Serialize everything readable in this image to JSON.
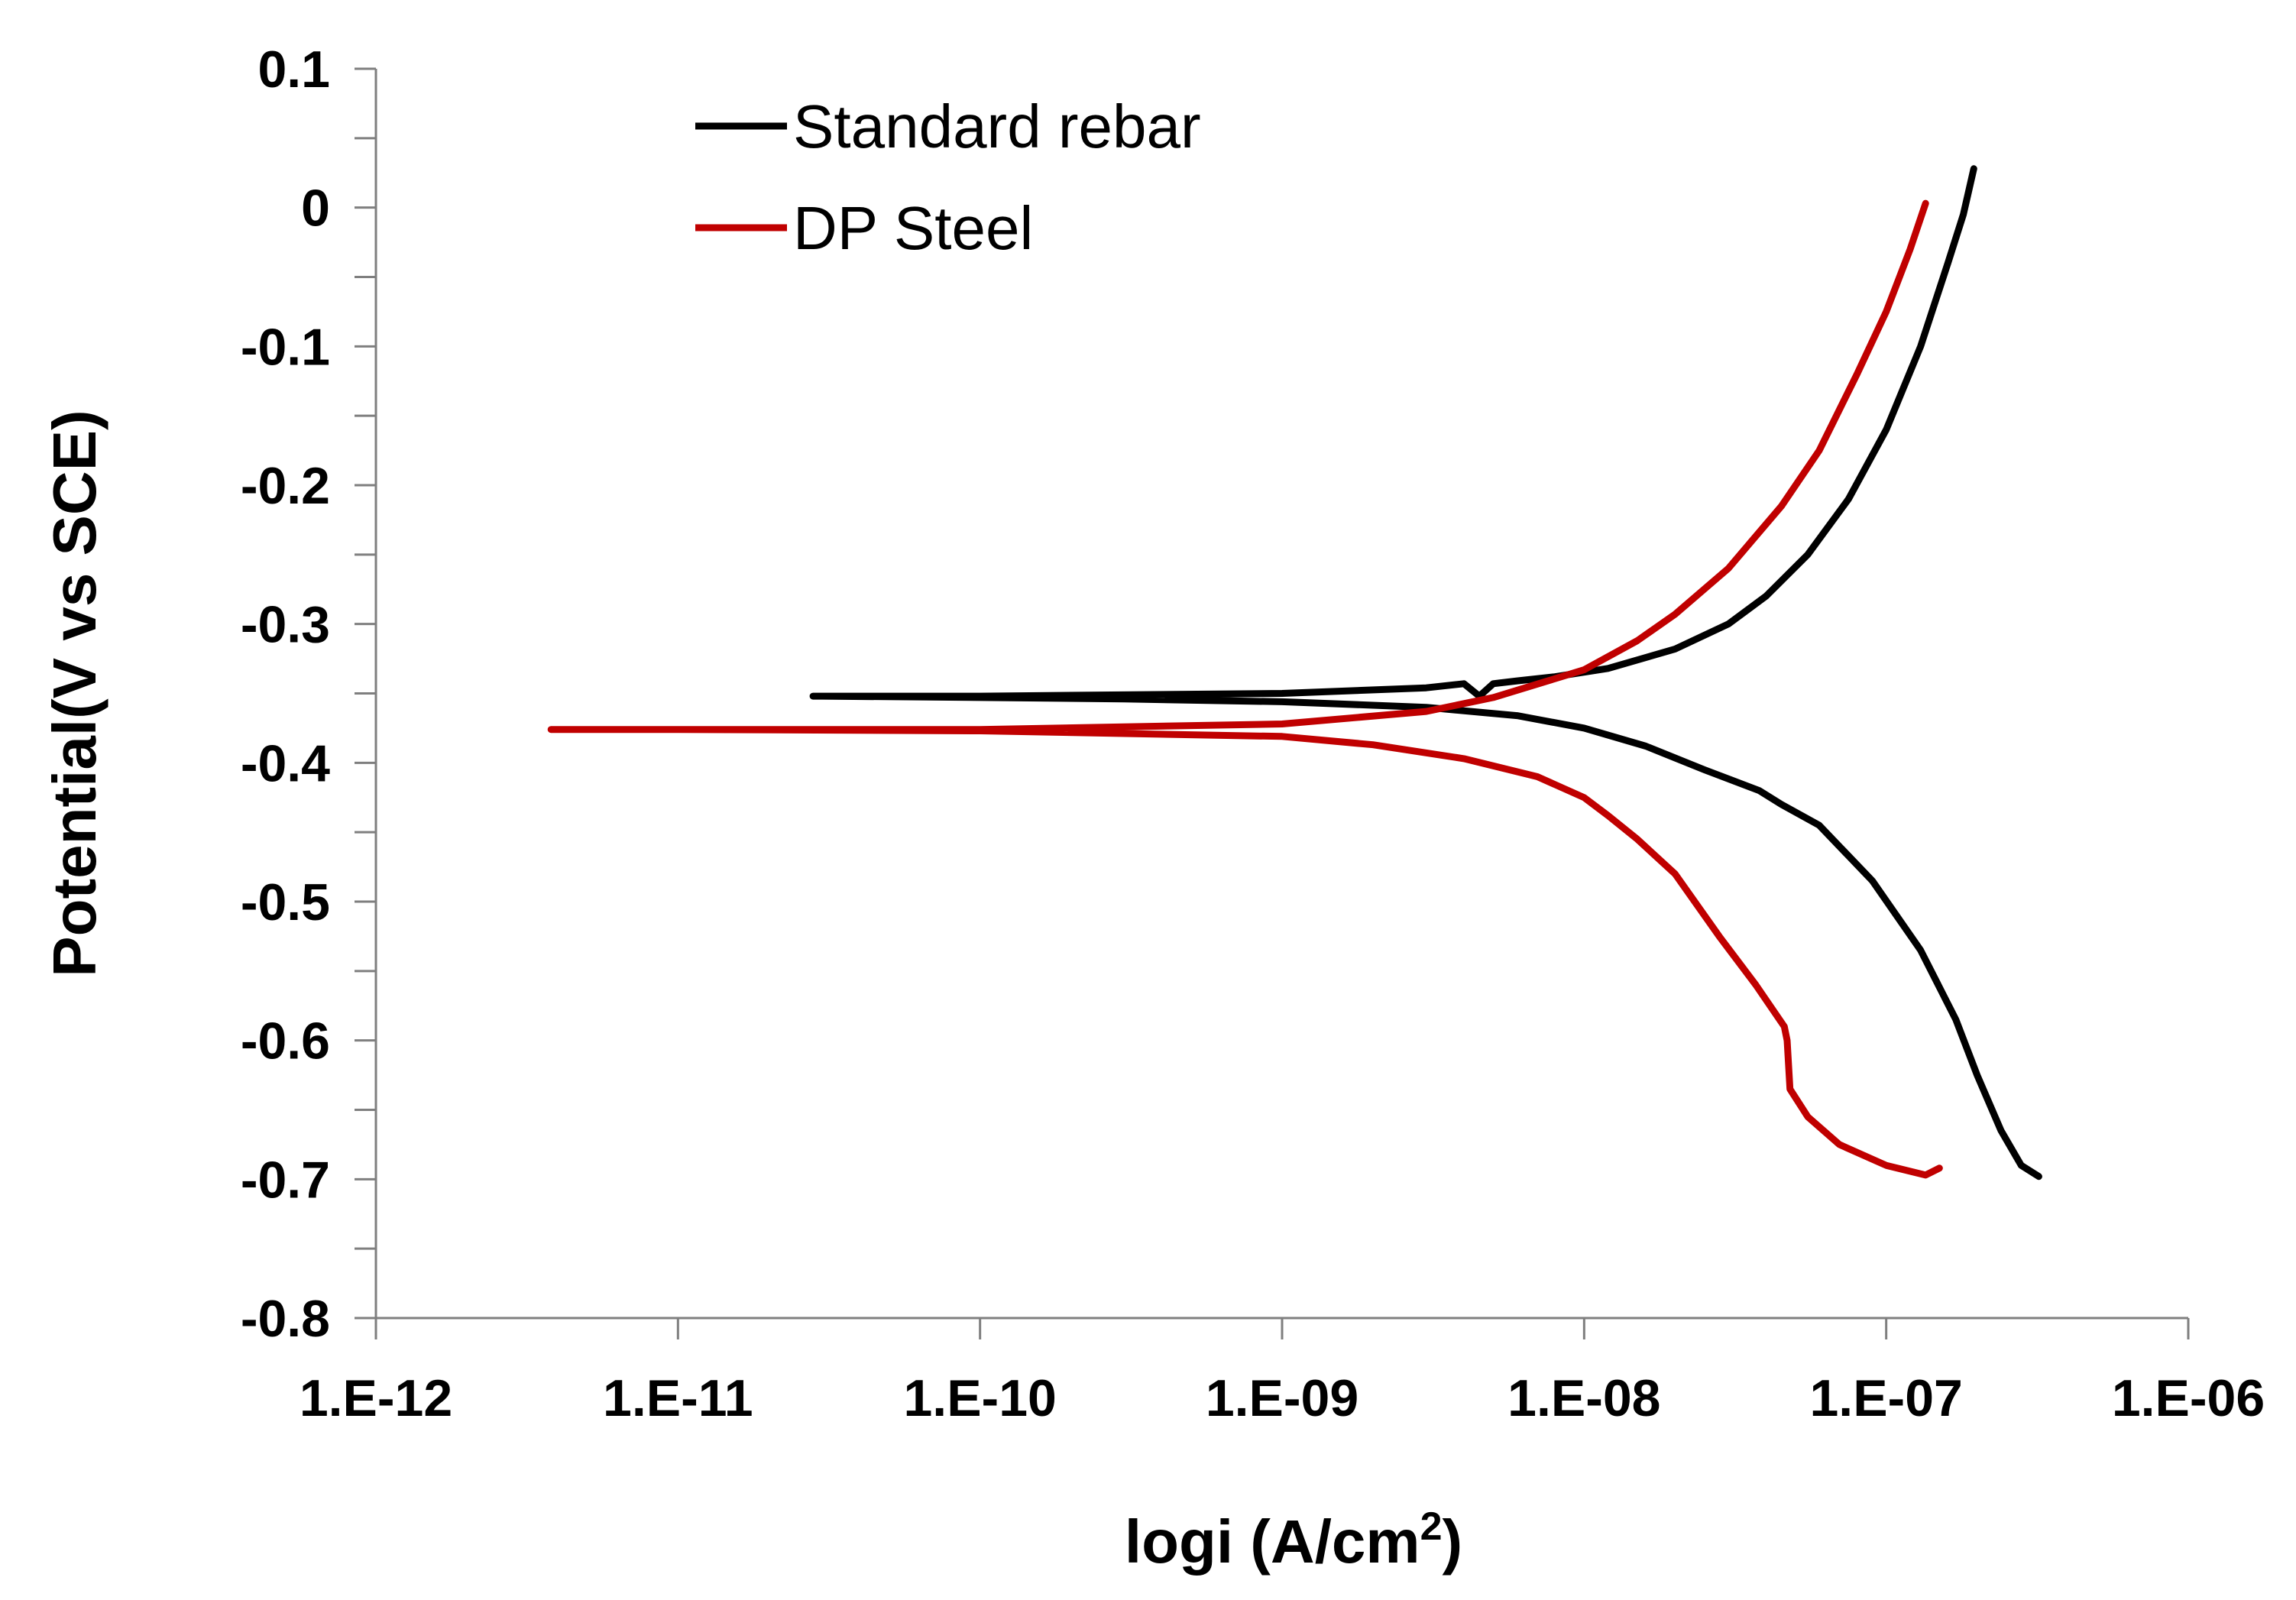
{
  "chart_data": {
    "type": "line",
    "xscale": "log",
    "xlim": [
      1e-12,
      1e-06
    ],
    "ylim": [
      -0.8,
      0.1
    ],
    "grid": false,
    "legend_position": "top-left",
    "xlabel": "logi (A/cm",
    "xlabel_sup": "2",
    "xlabel_close": ")",
    "ylabel": "Potential(V vs SCE)",
    "x_ticks": [
      {
        "value": 1e-12,
        "label": "1.E-12"
      },
      {
        "value": 1e-11,
        "label": "1.E-11"
      },
      {
        "value": 1e-10,
        "label": "1.E-10"
      },
      {
        "value": 1e-09,
        "label": "1.E-09"
      },
      {
        "value": 1e-08,
        "label": "1.E-08"
      },
      {
        "value": 1e-07,
        "label": "1.E-07"
      },
      {
        "value": 1e-06,
        "label": "1.E-06"
      }
    ],
    "y_ticks": [
      {
        "value": 0.1,
        "label": "0.1"
      },
      {
        "value": 0,
        "label": "0"
      },
      {
        "value": -0.1,
        "label": "-0.1"
      },
      {
        "value": -0.2,
        "label": "-0.2"
      },
      {
        "value": -0.3,
        "label": "-0.3"
      },
      {
        "value": -0.4,
        "label": "-0.4"
      },
      {
        "value": -0.5,
        "label": "-0.5"
      },
      {
        "value": -0.6,
        "label": "-0.6"
      },
      {
        "value": -0.7,
        "label": "-0.7"
      },
      {
        "value": -0.8,
        "label": "-0.8"
      }
    ],
    "y_minor_step": 0.05,
    "series": [
      {
        "name": "Standard rebar",
        "color": "#000000",
        "points": [
          [
            3.2e-07,
            -0.698
          ],
          [
            2.8e-07,
            -0.69
          ],
          [
            2.4e-07,
            -0.665
          ],
          [
            2e-07,
            -0.625
          ],
          [
            1.7e-07,
            -0.585
          ],
          [
            1.3e-07,
            -0.535
          ],
          [
            9e-08,
            -0.485
          ],
          [
            6e-08,
            -0.445
          ],
          [
            4.5e-08,
            -0.43
          ],
          [
            3.8e-08,
            -0.42
          ],
          [
            2.5e-08,
            -0.405
          ],
          [
            1.6e-08,
            -0.388
          ],
          [
            1e-08,
            -0.375
          ],
          [
            6e-09,
            -0.366
          ],
          [
            3e-09,
            -0.36
          ],
          [
            1e-09,
            -0.356
          ],
          [
            3e-10,
            -0.354
          ],
          [
            1e-10,
            -0.353
          ],
          [
            3e-11,
            -0.352
          ],
          [
            2.8e-11,
            -0.352
          ],
          [
            1e-10,
            -0.352
          ],
          [
            1e-09,
            -0.35
          ],
          [
            3e-09,
            -0.346
          ],
          [
            4e-09,
            -0.343
          ],
          [
            4.5e-09,
            -0.352
          ],
          [
            5e-09,
            -0.343
          ],
          [
            6e-09,
            -0.341
          ],
          [
            8e-09,
            -0.338
          ],
          [
            1.2e-08,
            -0.332
          ],
          [
            2e-08,
            -0.318
          ],
          [
            3e-08,
            -0.3
          ],
          [
            4e-08,
            -0.28
          ],
          [
            5.5e-08,
            -0.25
          ],
          [
            7.5e-08,
            -0.21
          ],
          [
            1e-07,
            -0.16
          ],
          [
            1.3e-07,
            -0.1
          ],
          [
            1.6e-07,
            -0.04
          ],
          [
            1.8e-07,
            -0.005
          ],
          [
            1.95e-07,
            0.028
          ]
        ]
      },
      {
        "name": "DP Steel",
        "color": "#c00000",
        "points": [
          [
            1.5e-07,
            -0.692
          ],
          [
            1.35e-07,
            -0.697
          ],
          [
            1e-07,
            -0.69
          ],
          [
            7e-08,
            -0.675
          ],
          [
            5.5e-08,
            -0.655
          ],
          [
            4.8e-08,
            -0.635
          ],
          [
            4.7e-08,
            -0.6
          ],
          [
            4.6e-08,
            -0.59
          ],
          [
            3.7e-08,
            -0.56
          ],
          [
            2.8e-08,
            -0.525
          ],
          [
            2e-08,
            -0.48
          ],
          [
            1.5e-08,
            -0.455
          ],
          [
            1.2e-08,
            -0.438
          ],
          [
            1e-08,
            -0.425
          ],
          [
            7e-09,
            -0.41
          ],
          [
            4e-09,
            -0.397
          ],
          [
            2e-09,
            -0.387
          ],
          [
            1e-09,
            -0.381
          ],
          [
            1e-10,
            -0.377
          ],
          [
            1e-11,
            -0.376
          ],
          [
            3.8e-12,
            -0.376
          ],
          [
            1e-11,
            -0.376
          ],
          [
            1e-10,
            -0.376
          ],
          [
            1e-09,
            -0.372
          ],
          [
            3e-09,
            -0.363
          ],
          [
            5e-09,
            -0.353
          ],
          [
            1e-08,
            -0.333
          ],
          [
            1.5e-08,
            -0.312
          ],
          [
            2e-08,
            -0.293
          ],
          [
            3e-08,
            -0.26
          ],
          [
            4.5e-08,
            -0.215
          ],
          [
            6e-08,
            -0.175
          ],
          [
            8e-08,
            -0.12
          ],
          [
            1e-07,
            -0.075
          ],
          [
            1.2e-07,
            -0.03
          ],
          [
            1.35e-07,
            0.003
          ]
        ]
      }
    ]
  }
}
